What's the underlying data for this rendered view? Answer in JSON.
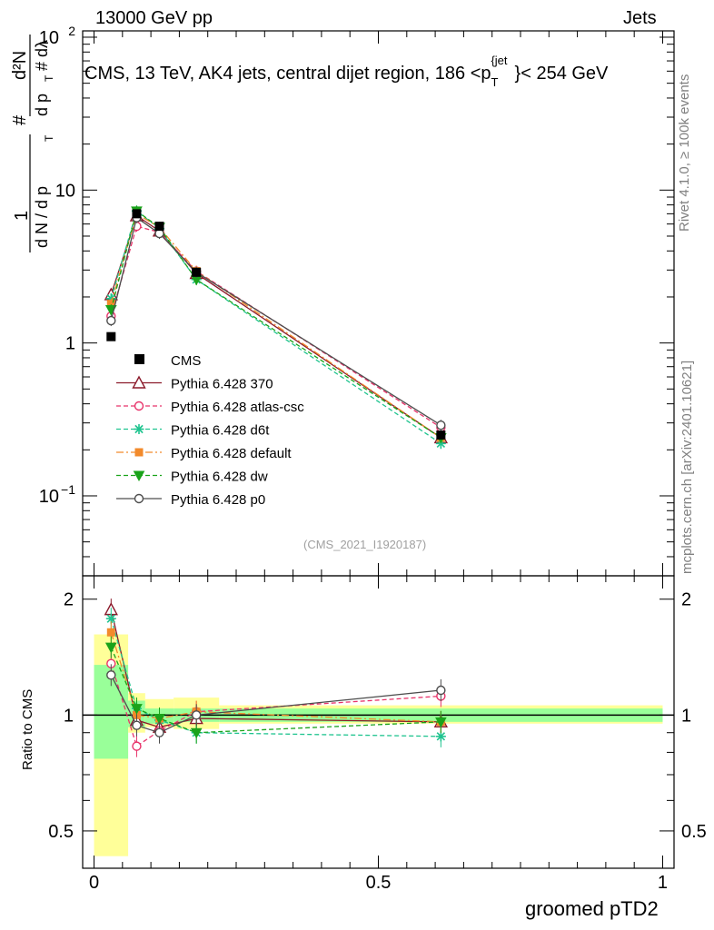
{
  "header": {
    "left_label": "13000 GeV pp",
    "right_label": "Jets",
    "title": "CMS, 13 TeV, AK4 jets, central dijet region, 186 <p",
    "title_sub": "T",
    "title_sup": "{jet",
    "title_end": "}< 254 GeV"
  },
  "side_labels": {
    "rivet": "Rivet 4.1.0, ≥ 100k events",
    "mcplots": "mcplots.cern.ch [arXiv:2401.10621]"
  },
  "analysis_tag": "(CMS_2021_I1920187)",
  "ylabel_top": "1/(dN/dp_T) d²N/(dp_T dλ)",
  "ylabel_bottom": "Ratio to CMS",
  "xlabel": "groomed pTD2",
  "colors": {
    "cms": "#000000",
    "p370": "#8b1a2b",
    "atlas": "#e8336a",
    "d6t": "#1fc48f",
    "default": "#f28a2b",
    "dw": "#1aa31a",
    "p0": "#4d4d4d",
    "band_inner": "#99ff99",
    "band_outer": "#ffff99"
  },
  "chart_data": {
    "type": "scatter",
    "title": "CMS, 13 TeV, AK4 jets, central dijet region, 186 < p_T^{jet} < 254 GeV",
    "xlabel": "groomed pTD2",
    "ylabel": "1/(dN/dp_T) d²N/(dp_T dλ)",
    "xlim": [
      -0.02,
      1.02
    ],
    "ylim_main": [
      0.03,
      110
    ],
    "yscale_main": "log",
    "ylim_ratio": [
      0.4,
      2.3
    ],
    "yscale_ratio": "log",
    "x_ticks": [
      0,
      0.5,
      1
    ],
    "x_tick_labels": [
      "0",
      "0.5",
      "1"
    ],
    "y_ticks_main": [
      0.1,
      1,
      10,
      100
    ],
    "y_tick_labels_main": [
      "10^{-1}",
      "1",
      "10",
      "10^{2}"
    ],
    "y_ticks_ratio": [
      0.5,
      1,
      2
    ],
    "y_tick_labels_ratio": [
      "0.5",
      "1",
      "2"
    ],
    "x": [
      0.03,
      0.075,
      0.115,
      0.18,
      0.61
    ],
    "bins": [
      [
        0.0,
        0.06
      ],
      [
        0.06,
        0.09
      ],
      [
        0.09,
        0.14
      ],
      [
        0.14,
        0.22
      ],
      [
        0.22,
        1.0
      ]
    ],
    "cms": {
      "name": "CMS",
      "values": [
        1.1,
        7.0,
        5.8,
        2.9,
        0.25
      ]
    },
    "cms_band_inner": [
      [
        0.77,
        1.35
      ],
      [
        0.93,
        1.09
      ],
      [
        0.95,
        1.04
      ],
      [
        0.96,
        1.04
      ],
      [
        0.96,
        1.04
      ]
    ],
    "cms_band_outer": [
      [
        0.43,
        1.62
      ],
      [
        0.9,
        1.14
      ],
      [
        0.93,
        1.1
      ],
      [
        0.92,
        1.11
      ],
      [
        0.95,
        1.06
      ]
    ],
    "legend_position": "lower-left",
    "series": [
      {
        "key": "p370",
        "name": "Pythia 6.428 370",
        "marker": "triangle-open",
        "dash": "",
        "values": [
          2.07,
          6.8,
          5.4,
          2.85,
          0.24
        ],
        "ratio": [
          1.88,
          0.97,
          0.93,
          0.98,
          0.96
        ]
      },
      {
        "key": "atlas",
        "name": "Pythia 6.428 atlas-csc",
        "marker": "circle-open",
        "dash": "5,3",
        "values": [
          1.5,
          5.8,
          5.3,
          2.95,
          0.28
        ],
        "ratio": [
          1.36,
          0.83,
          0.91,
          1.02,
          1.12
        ]
      },
      {
        "key": "d6t",
        "name": "Pythia 6.428 d6t",
        "marker": "star",
        "dash": "5,3",
        "values": [
          1.95,
          7.3,
          5.6,
          2.6,
          0.22
        ],
        "ratio": [
          1.78,
          1.04,
          0.97,
          0.9,
          0.88
        ]
      },
      {
        "key": "default",
        "name": "Pythia 6.428 default",
        "marker": "square-filled",
        "dash": "8,3,2,3",
        "values": [
          1.8,
          7.0,
          5.7,
          2.95,
          0.24
        ],
        "ratio": [
          1.64,
          1.0,
          0.98,
          1.02,
          0.96
        ]
      },
      {
        "key": "dw",
        "name": "Pythia 6.428 dw",
        "marker": "triangle-down-filled",
        "dash": "5,3",
        "values": [
          1.65,
          7.3,
          5.7,
          2.6,
          0.24
        ],
        "ratio": [
          1.5,
          1.04,
          0.98,
          0.9,
          0.96
        ]
      },
      {
        "key": "p0",
        "name": "Pythia 6.428 p0",
        "marker": "circle-open",
        "dash": "",
        "values": [
          1.4,
          6.6,
          5.2,
          2.9,
          0.29
        ],
        "ratio": [
          1.27,
          0.94,
          0.9,
          1.0,
          1.16
        ]
      }
    ]
  }
}
